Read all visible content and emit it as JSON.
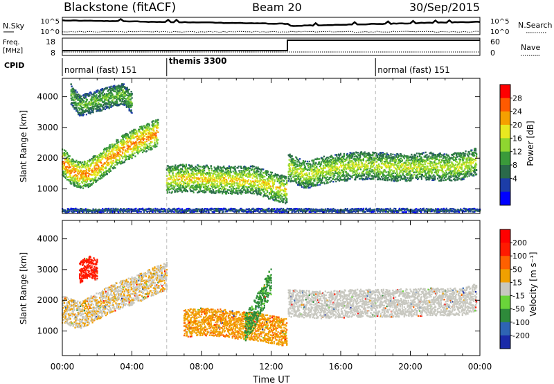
{
  "header": {
    "station": "Blackstone (fitACF)",
    "beam": "Beam 20",
    "date": "30/Sep/2015"
  },
  "strips": {
    "noise": {
      "left_label": "N.Sky",
      "right_label": "N.Search",
      "left_ticks": [
        "10^5",
        "10^0"
      ],
      "right_ticks": [
        "10^5",
        "10^0"
      ]
    },
    "freq": {
      "left_label_1": "Freq.",
      "left_label_2": "[MHz]",
      "right_label": "Nave",
      "left_ticks": [
        "18",
        "8"
      ],
      "right_ticks": [
        "60",
        "0"
      ]
    },
    "cpid": {
      "label": "CPID",
      "segments": [
        {
          "name": "normal (fast) 151",
          "start_hour": 0,
          "end_hour": 6
        },
        {
          "name": "themis 3300",
          "start_hour": 6,
          "end_hour": 18
        },
        {
          "name": "normal (fast) 151",
          "start_hour": 18,
          "end_hour": 24
        }
      ]
    }
  },
  "axes": {
    "ylabel": "Slant Range [km]",
    "xlabel": "Time UT",
    "y_ticks": [
      "4000",
      "3000",
      "2000",
      "1000"
    ],
    "x_ticks": [
      "00:00",
      "04:00",
      "08:00",
      "12:00",
      "16:00",
      "20:00",
      "00:00"
    ]
  },
  "power_colorbar": {
    "label": "Power [dB]",
    "ticks": [
      "28",
      "24",
      "20",
      "16",
      "12",
      "8",
      "4"
    ],
    "colors": [
      "#0000ff",
      "#1c3da8",
      "#2a6a4a",
      "#3a9a3a",
      "#8fd630",
      "#e8e820",
      "#f5a000",
      "#ff5a00",
      "#ff0000"
    ]
  },
  "velocity_colorbar": {
    "label": "Velocity [m s⁻¹]",
    "ticks": [
      "200",
      "100",
      "50",
      "15",
      "-15",
      "-50",
      "-100",
      "-200"
    ],
    "colors": [
      "#1a2aa8",
      "#2e64b4",
      "#2e8a3a",
      "#6ad43a",
      "#c8c8c0",
      "#f0a000",
      "#ff6000",
      "#ff1a00",
      "#ff0000"
    ]
  },
  "chart_data": [
    {
      "type": "heatmap",
      "title": "Power",
      "x_unit": "hours UT",
      "y_unit": "km",
      "xlim": [
        0,
        24
      ],
      "ylim": [
        200,
        4600
      ],
      "colorbar": "Power [dB]",
      "features": [
        {
          "name": "morning band",
          "x": [
            0,
            0.5,
            1,
            1.5,
            2,
            2.5,
            3,
            3.5,
            4,
            4.5,
            5,
            5.5
          ],
          "y": [
            1900,
            1600,
            1450,
            1500,
            1700,
            1900,
            2100,
            2300,
            2450,
            2600,
            2700,
            2850
          ],
          "power_db": 22
        },
        {
          "name": "midday band",
          "x": [
            6,
            7,
            8,
            9,
            10,
            11,
            12,
            12.9
          ],
          "y": [
            1300,
            1350,
            1320,
            1300,
            1280,
            1300,
            1100,
            950
          ],
          "power_db": 18
        },
        {
          "name": "afternoon band",
          "x": [
            13,
            14,
            15,
            16,
            17,
            18,
            19,
            20,
            21,
            22,
            23,
            23.8
          ],
          "y": [
            1700,
            1450,
            1600,
            1700,
            1750,
            1750,
            1700,
            1700,
            1750,
            1700,
            1750,
            1900
          ],
          "power_db": 16
        },
        {
          "name": "high range echoes",
          "x": [
            0.5,
            1,
            3.5,
            4
          ],
          "y": [
            4100,
            3700,
            4100,
            3800
          ],
          "power_db": 12
        },
        {
          "name": "near range ground",
          "x": [
            0,
            6,
            12,
            18,
            24
          ],
          "y": [
            300,
            300,
            300,
            300,
            300
          ],
          "power_db": 6
        }
      ]
    },
    {
      "type": "heatmap",
      "title": "Velocity",
      "x_unit": "hours UT",
      "y_unit": "km",
      "xlim": [
        0,
        24
      ],
      "ylim": [
        200,
        4600
      ],
      "colorbar": "Velocity [m s⁻¹]",
      "features": [
        {
          "name": "morning band",
          "x": [
            0,
            1,
            2,
            3,
            4,
            5,
            6
          ],
          "y": [
            1700,
            1500,
            1800,
            2100,
            2300,
            2550,
            2800
          ],
          "velocity": -10
        },
        {
          "name": "early high range",
          "x": [
            1,
            1.5,
            2
          ],
          "y": [
            2900,
            3100,
            3000
          ],
          "velocity": -150
        },
        {
          "name": "midday band",
          "x": [
            7,
            8,
            9,
            10,
            11,
            12.9
          ],
          "y": [
            1250,
            1300,
            1280,
            1200,
            1150,
            950
          ],
          "velocity": -40
        },
        {
          "name": "rising streak",
          "x": [
            10.5,
            11,
            11.5,
            12
          ],
          "y": [
            1100,
            1500,
            2100,
            2600
          ],
          "velocity": 40
        },
        {
          "name": "afternoon band",
          "x": [
            13,
            15,
            17,
            19,
            21,
            23,
            23.8
          ],
          "y": [
            1900,
            1850,
            1900,
            1900,
            1950,
            1950,
            2100
          ],
          "velocity": 0
        }
      ]
    }
  ]
}
